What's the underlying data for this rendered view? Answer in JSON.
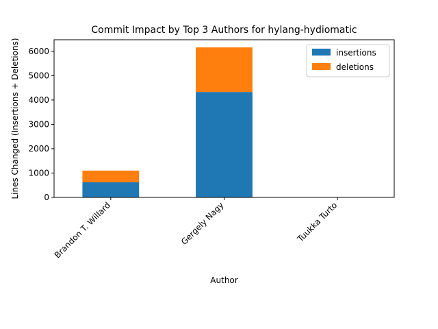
{
  "chart_data": {
    "type": "bar",
    "stacked": true,
    "title": "Commit Impact by Top 3 Authors for hylang-hydiomatic",
    "xlabel": "Author",
    "ylabel": "Lines Changed (Insertions + Deletions)",
    "categories": [
      "Brandon T. Willard",
      "Gergely Nagy",
      "Tuukka Turto"
    ],
    "series": [
      {
        "name": "insertions",
        "values": [
          620,
          4330,
          0
        ],
        "color": "#1f77b4"
      },
      {
        "name": "deletions",
        "values": [
          480,
          1830,
          0
        ],
        "color": "#ff7f0e"
      }
    ],
    "ylim": [
      0,
      6474
    ],
    "yticks": [
      0,
      1000,
      2000,
      3000,
      4000,
      5000,
      6000
    ],
    "ytick_labels": [
      "0",
      "1000",
      "2000",
      "3000",
      "4000",
      "5000",
      "6000"
    ],
    "grid": false,
    "legend": "top-right"
  }
}
